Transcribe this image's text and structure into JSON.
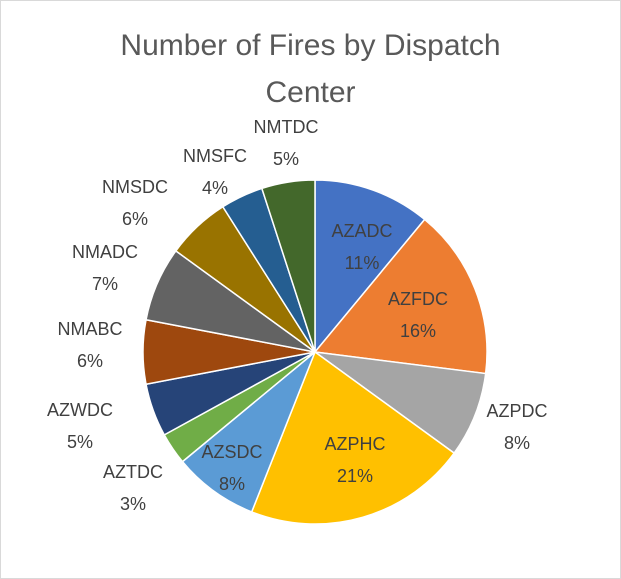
{
  "chart_data": {
    "type": "pie",
    "title": "Number of Fires by Dispatch Center",
    "categories": [
      "AZADC",
      "AZFDC",
      "AZPDC",
      "AZPHC",
      "AZSDC",
      "AZTDC",
      "AZWDC",
      "NMABC",
      "NMADC",
      "NMSDC",
      "NMSFC",
      "NMTDC"
    ],
    "values": [
      11,
      16,
      8,
      21,
      8,
      3,
      5,
      6,
      7,
      6,
      4,
      5
    ],
    "value_labels": [
      "11%",
      "16%",
      "8%",
      "21%",
      "8%",
      "3%",
      "5%",
      "6%",
      "7%",
      "6%",
      "4%",
      "5%"
    ],
    "colors": [
      "#4472c4",
      "#ed7d31",
      "#a5a5a5",
      "#ffc000",
      "#5b9bd5",
      "#70ad47",
      "#264478",
      "#9e480e",
      "#636363",
      "#997300",
      "#255e91",
      "#43682b"
    ]
  }
}
